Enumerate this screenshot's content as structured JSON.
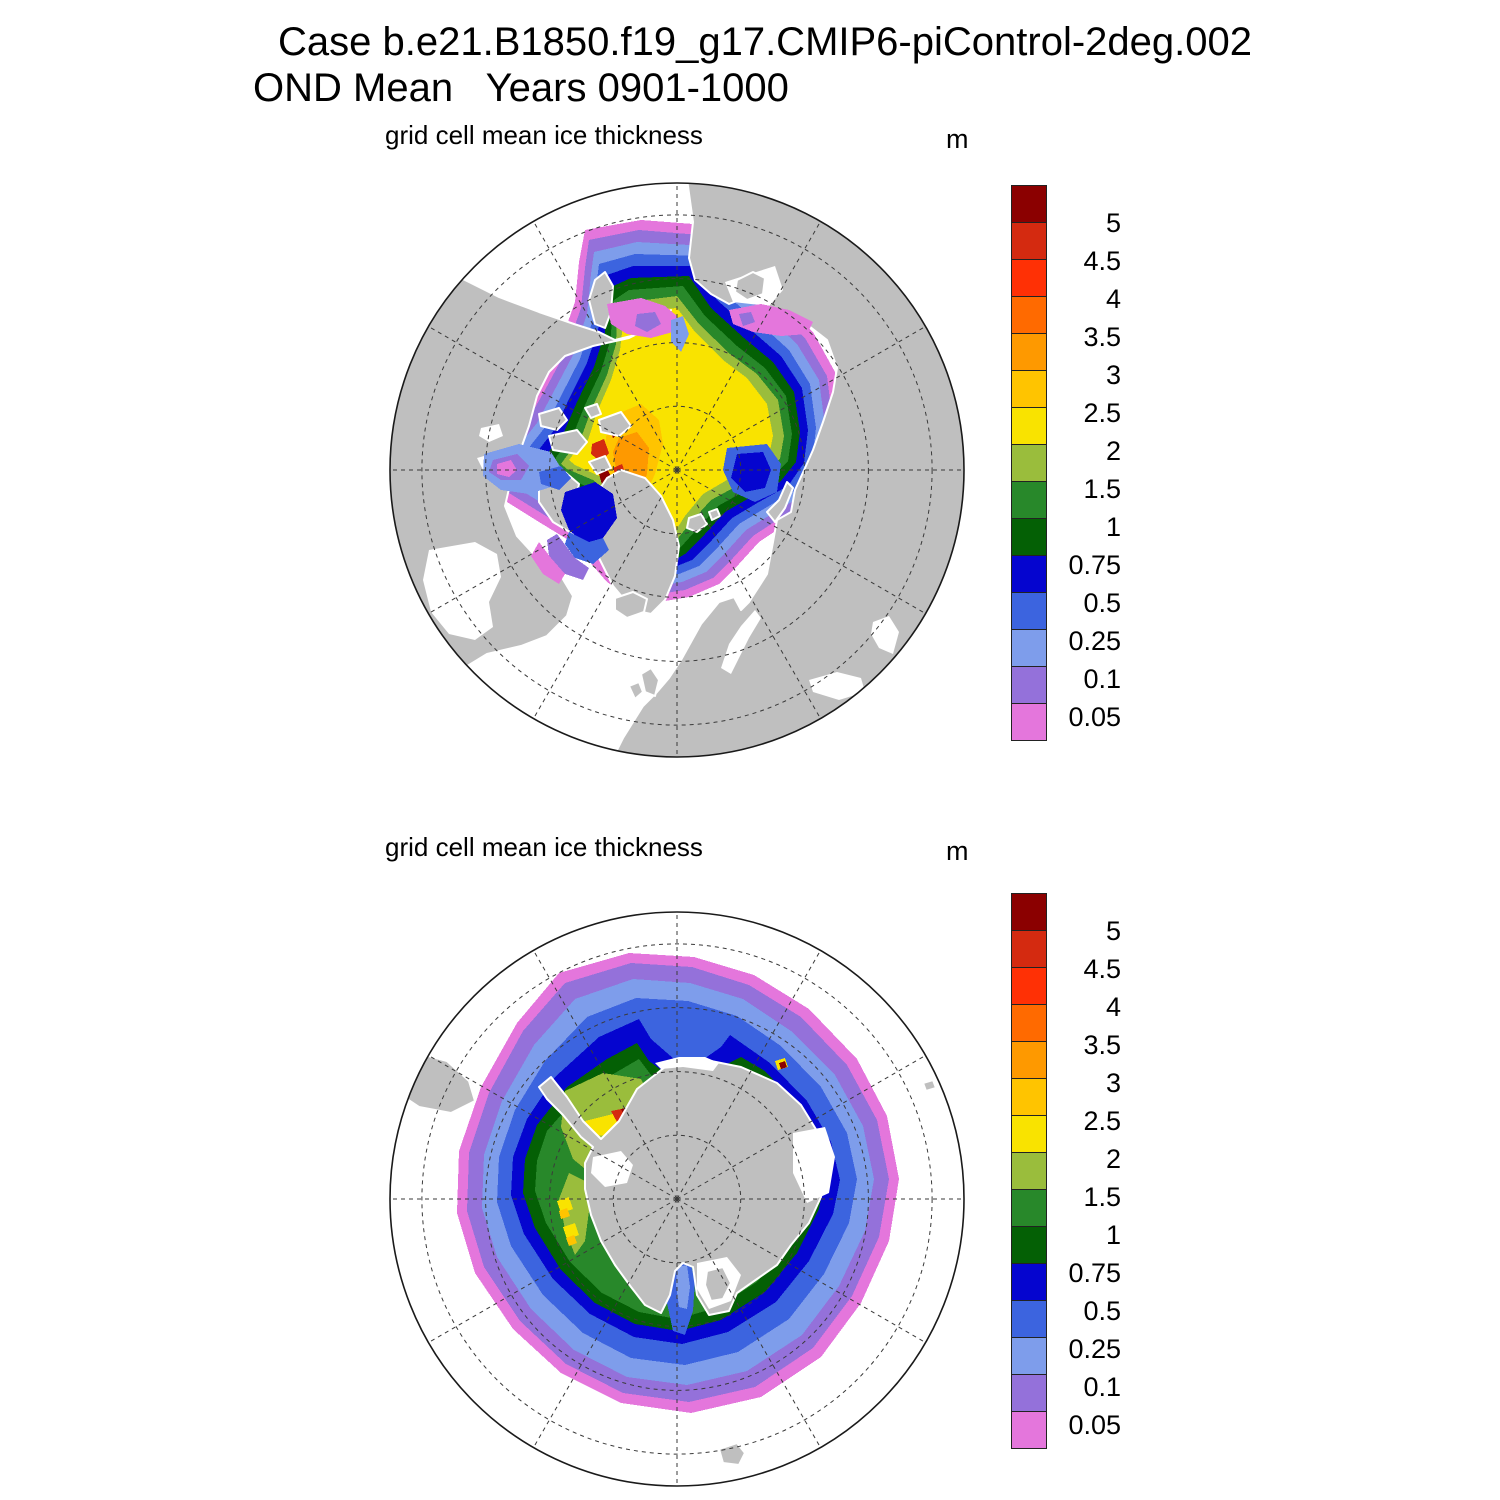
{
  "header": {
    "title_line1": "Case b.e21.B1850.f19_g17.CMIP6-piControl-2deg.002",
    "title_line2": "OND Mean   Years 0901-1000"
  },
  "panels": [
    {
      "id": "north",
      "subtitle": "grid cell mean ice thickness",
      "units": "m"
    },
    {
      "id": "south",
      "subtitle": "grid cell mean ice thickness",
      "units": "m"
    }
  ],
  "colorbar": {
    "units": "m",
    "labels": [
      "5",
      "4.5",
      "4",
      "3.5",
      "3",
      "2.5",
      "2",
      "1.5",
      "1",
      "0.75",
      "0.5",
      "0.25",
      "0.1",
      "0.05"
    ],
    "colors": [
      "#8B0000",
      "#D42A10",
      "#FF3005",
      "#FF6A00",
      "#FE9900",
      "#FFC400",
      "#F9E300",
      "#9ABD3C",
      "#28882A",
      "#046005",
      "#0505CF",
      "#3C64DF",
      "#7E9DEB",
      "#9471DA",
      "#E476DC"
    ]
  },
  "map_colors": {
    "land": "#BFBFBF",
    "ocean": "#FFFFFF",
    "coastline": "#FFFFFF",
    "graticule": "#3a3a3a"
  },
  "chart_data": [
    {
      "type": "heatmap",
      "title": "grid cell mean ice thickness",
      "units": "m",
      "projection": "north polar stereographic (90N-45N), graticule every 30 deg lon and 10 deg lat",
      "region": "Arctic",
      "season": "OND",
      "years": "0901-1000",
      "case": "b.e21.B1850.f19_g17.CMIP6-piControl-2deg.002",
      "contour_levels": [
        0.05,
        0.1,
        0.25,
        0.5,
        0.75,
        1,
        1.5,
        2,
        2.5,
        3,
        3.5,
        4,
        4.5,
        5
      ],
      "level_colors": [
        "#E476DC",
        "#9471DA",
        "#7E9DEB",
        "#3C64DF",
        "#0505CF",
        "#046005",
        "#28882A",
        "#9ABD3C",
        "#F9E300",
        "#FFC400",
        "#FE9900",
        "#FF6A00",
        "#FF3005",
        "#D42A10",
        "#8B0000"
      ],
      "legend_position": "right",
      "features": [
        "central Arctic pack mostly 2-2.5 m (yellow) with 2.5-3.5 m (orange) north of Greenland",
        "spots exceeding 4-5 m (red/dark red) in the Canadian Archipelago channels",
        "green 1-2 m band on the Siberian side, dark blue 0.5-0.75 m in the Kara Sea and Baffin Bay",
        "thin 0.05-0.5 m fringes (magenta/purple/light blue) in the Bering Sea, Sea of Okhotsk, Hudson Bay/Foxe Basin, Davis Strait and Barents Sea ice edge",
        "ice-free (white) North Atlantic, Norwegian Sea and North Pacific; land gray"
      ]
    },
    {
      "type": "heatmap",
      "title": "grid cell mean ice thickness",
      "units": "m",
      "projection": "south polar stereographic (90S-45S), graticule every 30 deg lon and 10 deg lat",
      "region": "Antarctic",
      "season": "OND",
      "years": "0901-1000",
      "case": "b.e21.B1850.f19_g17.CMIP6-piControl-2deg.002",
      "contour_levels": [
        0.05,
        0.1,
        0.25,
        0.5,
        0.75,
        1,
        1.5,
        2,
        2.5,
        3,
        3.5,
        4,
        4.5,
        5
      ],
      "level_colors": [
        "#E476DC",
        "#9471DA",
        "#7E9DEB",
        "#3C64DF",
        "#0505CF",
        "#046005",
        "#28882A",
        "#9ABD3C",
        "#F9E300",
        "#FFC400",
        "#FE9900",
        "#FF6A00",
        "#FF3005",
        "#D42A10",
        "#8B0000"
      ],
      "legend_position": "right",
      "features": [
        "circumpolar ice band mostly 0.75-1.5 m (greens) around the continent",
        "outer edge banded 0.5 down to <0.05 m (dark blue, blue, light blue, purple, magenta fringe)",
        "1.5-2.5 m (yellow-green/yellow) in the Weddell Sea and along the Antarctic Peninsula with small >4.5 m dark-red streaks",
        "0.5-0.75 m (dark blue) lobe intruding the pack near the top and a blue coastal channel at bottom center",
        "gray Antarctica with white ice shelves; tip of South America at left"
      ]
    }
  ]
}
